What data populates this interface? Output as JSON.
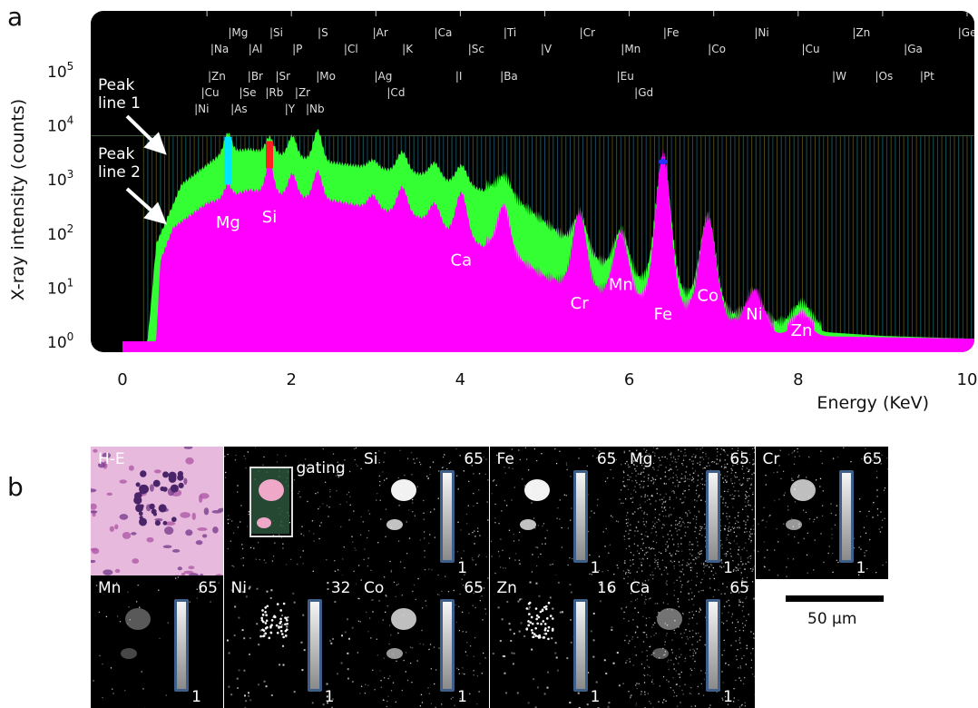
{
  "panel_a_label": "a",
  "panel_b_label": "b",
  "chart_data": {
    "type": "area",
    "xlabel": "Energy (KeV)",
    "ylabel": "X-ray intensity (counts)",
    "xlim": [
      0,
      10
    ],
    "ylim_log10": [
      0,
      4.85
    ],
    "yscale": "log",
    "x_ticks": [
      0,
      2,
      4,
      6,
      8,
      10
    ],
    "y_ticks": [
      {
        "exp": 0,
        "base": "10",
        "sup": "0"
      },
      {
        "exp": 1,
        "base": "10",
        "sup": "1"
      },
      {
        "exp": 2,
        "base": "10",
        "sup": "2"
      },
      {
        "exp": 3,
        "base": "10",
        "sup": "3"
      },
      {
        "exp": 4,
        "base": "10",
        "sup": "4"
      },
      {
        "exp": 5,
        "base": "10",
        "sup": "5"
      }
    ],
    "series": [
      {
        "name": "Peak line 1",
        "color": "#33ff33",
        "background": [
          [
            0.3,
            0.05
          ],
          [
            0.4,
            1.8
          ],
          [
            0.7,
            2.9
          ],
          [
            1.2,
            3.5
          ],
          [
            1.5,
            3.55
          ],
          [
            2.5,
            3.3
          ],
          [
            3.5,
            3.1
          ],
          [
            4.5,
            2.7
          ],
          [
            5.0,
            2.1
          ],
          [
            5.5,
            1.5
          ],
          [
            6.0,
            1.1
          ],
          [
            6.5,
            0.9
          ],
          [
            7.0,
            0.5
          ],
          [
            7.5,
            0.3
          ],
          [
            8.0,
            0.2
          ],
          [
            9.0,
            0.1
          ],
          [
            10.0,
            0.05
          ]
        ],
        "peaks": [
          [
            1.25,
            3.85
          ],
          [
            1.74,
            3.78
          ],
          [
            2.01,
            3.8
          ],
          [
            2.31,
            3.9
          ],
          [
            2.96,
            3.35
          ],
          [
            3.31,
            3.5
          ],
          [
            3.69,
            3.3
          ],
          [
            4.01,
            3.25
          ],
          [
            4.51,
            2.95
          ],
          [
            5.41,
            2.25
          ],
          [
            5.9,
            1.95
          ],
          [
            6.4,
            3.3
          ],
          [
            6.93,
            2.2
          ],
          [
            7.48,
            0.7
          ],
          [
            8.04,
            0.6
          ]
        ]
      },
      {
        "name": "Peak line 2",
        "color": "#ff00ff",
        "background": [
          [
            0.4,
            0.05
          ],
          [
            0.45,
            1.5
          ],
          [
            0.6,
            2.1
          ],
          [
            1.0,
            2.55
          ],
          [
            1.5,
            2.8
          ],
          [
            2.5,
            2.6
          ],
          [
            3.5,
            2.3
          ],
          [
            4.5,
            1.6
          ],
          [
            5.0,
            1.1
          ],
          [
            5.5,
            0.9
          ],
          [
            6.0,
            0.75
          ],
          [
            6.5,
            0.6
          ],
          [
            7.0,
            0.4
          ],
          [
            7.5,
            0.2
          ],
          [
            8.0,
            0.1
          ],
          [
            10.0,
            0.05
          ]
        ],
        "peaks": [
          [
            1.25,
            2.9
          ],
          [
            1.74,
            3.3
          ],
          [
            2.01,
            3.1
          ],
          [
            2.31,
            3.15
          ],
          [
            2.96,
            2.7
          ],
          [
            3.31,
            2.85
          ],
          [
            3.69,
            2.55
          ],
          [
            4.01,
            2.75
          ],
          [
            4.51,
            2.4
          ],
          [
            5.41,
            2.3
          ],
          [
            5.9,
            1.9
          ],
          [
            6.4,
            3.35
          ],
          [
            6.93,
            2.2
          ],
          [
            7.48,
            0.85
          ],
          [
            8.04,
            0.4
          ]
        ]
      }
    ],
    "highlight_bands": [
      {
        "x": 1.25,
        "color": "#00e5ff"
      },
      {
        "x": 1.74,
        "color": "#ff2020"
      }
    ],
    "element_markers": [
      {
        "label": "Mg",
        "x": 1.25,
        "row": 0
      },
      {
        "label": "Si",
        "x": 1.74,
        "row": 0
      },
      {
        "label": "S",
        "x": 2.31,
        "row": 0
      },
      {
        "label": "Ar",
        "x": 2.96,
        "row": 0
      },
      {
        "label": "Ca",
        "x": 3.69,
        "row": 0
      },
      {
        "label": "Ti",
        "x": 4.51,
        "row": 0
      },
      {
        "label": "Cr",
        "x": 5.41,
        "row": 0
      },
      {
        "label": "Fe",
        "x": 6.4,
        "row": 0
      },
      {
        "label": "Ni",
        "x": 7.48,
        "row": 0
      },
      {
        "label": "Zn",
        "x": 8.64,
        "row": 0
      },
      {
        "label": "Ge",
        "x": 9.89,
        "row": 0
      },
      {
        "label": "Na",
        "x": 1.04,
        "row": 1
      },
      {
        "label": "Al",
        "x": 1.49,
        "row": 1
      },
      {
        "label": "P",
        "x": 2.01,
        "row": 1
      },
      {
        "label": "Cl",
        "x": 2.62,
        "row": 1
      },
      {
        "label": "K",
        "x": 3.31,
        "row": 1
      },
      {
        "label": "Sc",
        "x": 4.09,
        "row": 1
      },
      {
        "label": "V",
        "x": 4.95,
        "row": 1
      },
      {
        "label": "Mn",
        "x": 5.9,
        "row": 1
      },
      {
        "label": "Co",
        "x": 6.93,
        "row": 1
      },
      {
        "label": "Cu",
        "x": 8.04,
        "row": 1
      },
      {
        "label": "Ga",
        "x": 9.25,
        "row": 1
      },
      {
        "label": "Zn",
        "x": 1.01,
        "row": 2
      },
      {
        "label": "Br",
        "x": 1.48,
        "row": 2
      },
      {
        "label": "Sr",
        "x": 1.81,
        "row": 2
      },
      {
        "label": "Mo",
        "x": 2.29,
        "row": 2
      },
      {
        "label": "Ag",
        "x": 2.98,
        "row": 2
      },
      {
        "label": "I",
        "x": 3.94,
        "row": 2
      },
      {
        "label": "Ba",
        "x": 4.47,
        "row": 2
      },
      {
        "label": "Eu",
        "x": 5.85,
        "row": 2
      },
      {
        "label": "W",
        "x": 8.4,
        "row": 2
      },
      {
        "label": "Os",
        "x": 8.91,
        "row": 2
      },
      {
        "label": "Pt",
        "x": 9.44,
        "row": 2
      },
      {
        "label": "Cu",
        "x": 0.93,
        "row": 3
      },
      {
        "label": "Se",
        "x": 1.38,
        "row": 3
      },
      {
        "label": "Rb",
        "x": 1.69,
        "row": 3
      },
      {
        "label": "Zr",
        "x": 2.04,
        "row": 3
      },
      {
        "label": "Cd",
        "x": 3.13,
        "row": 3
      },
      {
        "label": "Gd",
        "x": 6.06,
        "row": 3
      },
      {
        "label": "Ni",
        "x": 0.85,
        "row": 4
      },
      {
        "label": "As",
        "x": 1.28,
        "row": 4
      },
      {
        "label": "Y",
        "x": 1.92,
        "row": 4
      },
      {
        "label": "Nb",
        "x": 2.17,
        "row": 4
      }
    ],
    "peak_annotations": [
      {
        "label": "Mg",
        "x": 1.25,
        "y": 2.1
      },
      {
        "label": "Si",
        "x": 1.74,
        "y": 2.2
      },
      {
        "label": "Ca",
        "x": 4.01,
        "y": 1.4
      },
      {
        "label": "Cr",
        "x": 5.41,
        "y": 0.6
      },
      {
        "label": "Mn",
        "x": 5.9,
        "y": 0.95
      },
      {
        "label": "Fe",
        "x": 6.4,
        "y": 0.4
      },
      {
        "label": "Co",
        "x": 6.93,
        "y": 0.75
      },
      {
        "label": "Ni",
        "x": 7.48,
        "y": 0.4
      },
      {
        "label": "Zn",
        "x": 8.04,
        "y": 0.1
      }
    ],
    "arrow_labels": [
      {
        "text": [
          "Peak",
          "line 1"
        ],
        "series": "Peak line 1"
      },
      {
        "text": [
          "Peak",
          "line 2"
        ],
        "series": "Peak line 2"
      }
    ]
  },
  "panel_b": {
    "row1": [
      {
        "label": "H-E",
        "type": "he"
      },
      {
        "label": "gating",
        "type": "gating"
      },
      {
        "label": "Si",
        "type": "map",
        "max": "65",
        "min": "1",
        "density": "high"
      },
      {
        "label": "Fe",
        "type": "map",
        "max": "65",
        "min": "1",
        "density": "high"
      },
      {
        "label": "Mg",
        "type": "map",
        "max": "65",
        "min": "1",
        "density": "noise"
      },
      {
        "label": "Cr",
        "type": "map",
        "max": "65",
        "min": "1",
        "density": "medium"
      }
    ],
    "row2": [
      {
        "label": "Mn",
        "type": "map",
        "max": "65",
        "min": "1",
        "density": "low"
      },
      {
        "label": "Ni",
        "type": "map",
        "max": "32",
        "min": "1",
        "density": "dots"
      },
      {
        "label": "Co",
        "type": "map",
        "max": "65",
        "min": "1",
        "density": "medium"
      },
      {
        "label": "Zn",
        "type": "map",
        "max": "16",
        "min": "1",
        "density": "dots"
      },
      {
        "label": "Ca",
        "type": "map",
        "max": "65",
        "min": "1",
        "density": "diffuse"
      }
    ],
    "scale_bar_label": "50 µm"
  }
}
